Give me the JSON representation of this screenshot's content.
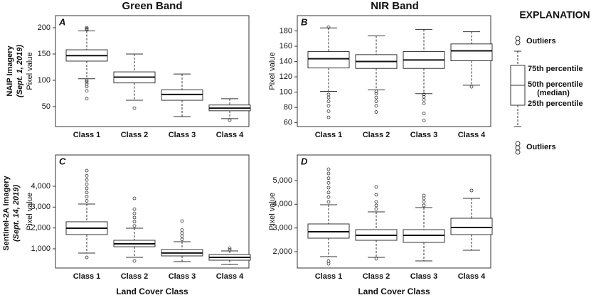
{
  "layout": {
    "column_titles": [
      "Green Band",
      "NIR Band"
    ],
    "row_titles": [
      [
        "NAIP Imagery",
        "(Sept. 1, 2019)"
      ],
      [
        "Sentinel-2A Imagery",
        "(Sept. 14, 2019)"
      ]
    ]
  },
  "explanation": {
    "title": "EXPLANATION",
    "outliers_top": "Outliers",
    "q3": "75th percentile",
    "median": "50th percentile",
    "median_note": "(median)",
    "q1": "25th percentile",
    "outliers_bottom": "Outliers"
  },
  "chart_data": [
    {
      "type": "box",
      "panel": "A",
      "ylabel": "Pixel value",
      "categories": [
        "Class 1",
        "Class 2",
        "Class 3",
        "Class 4"
      ],
      "ylim": [
        12,
        223
      ],
      "yticks": [
        50,
        100,
        150,
        200
      ],
      "box_color": "#ffffff",
      "line_color": "#333333",
      "whisker_low": [
        103,
        62,
        31,
        27
      ],
      "q1": [
        136.5,
        95,
        62,
        42
      ],
      "median": [
        147,
        106,
        73,
        47
      ],
      "q3": [
        158,
        116,
        82,
        53
      ],
      "whisker_high": [
        194,
        150,
        112,
        65
      ],
      "outliers": [
        [
          65,
          80,
          88,
          93,
          97,
          100,
          196,
          198,
          200
        ],
        [
          47
        ],
        [],
        [
          24
        ]
      ]
    },
    {
      "type": "box",
      "panel": "B",
      "ylabel": "Pixel value",
      "categories": [
        "Class 1",
        "Class 2",
        "Class 3",
        "Class 4"
      ],
      "ylim": [
        55,
        200
      ],
      "yticks": [
        60,
        80,
        100,
        120,
        140,
        160,
        180
      ],
      "box_color": "#ffffff",
      "line_color": "#333333",
      "whisker_low": [
        101,
        103,
        98,
        109
      ],
      "q1": [
        131.6,
        131,
        131,
        141
      ],
      "median": [
        143.7,
        140,
        142,
        154
      ],
      "q3": [
        153,
        149,
        153,
        163
      ],
      "whisker_high": [
        184,
        173.5,
        182,
        179
      ],
      "outliers": [
        [
          67,
          75,
          82,
          88,
          93,
          97,
          185
        ],
        [
          74,
          82,
          88,
          93,
          98,
          101
        ],
        [
          63,
          72,
          85,
          90,
          94,
          97
        ],
        [
          107
        ]
      ]
    },
    {
      "type": "box",
      "panel": "C",
      "ylabel": "Pixel value",
      "xlabel": "Land Cover Class",
      "categories": [
        "Class 1",
        "Class 2",
        "Class 3",
        "Class 4"
      ],
      "ylim": [
        80,
        5500
      ],
      "yticks": [
        {
          "value": 1000,
          "label": "1,000"
        },
        {
          "value": 2000,
          "label": "2,000"
        },
        {
          "value": 3000,
          "label": "3,000"
        },
        {
          "value": 4000,
          "label": "4,000"
        }
      ],
      "box_color": "#ffffff",
      "line_color": "#333333",
      "whisker_low": [
        795,
        590,
        385,
        250
      ],
      "q1": [
        1683,
        1100,
        660,
        455
      ],
      "median": [
        1990,
        1240,
        800,
        590
      ],
      "q3": [
        2297,
        1410,
        965,
        730
      ],
      "whisker_high": [
        3150,
        1990,
        1340,
        900
      ],
      "outliers": [
        [
          590,
          3300,
          3500,
          3700,
          3900,
          4100,
          4300,
          4500,
          4750
        ],
        [
          420,
          2100,
          2300,
          2500,
          2700,
          2900,
          3420
        ],
        [
          1450,
          1600,
          1750,
          1900,
          2330
        ],
        [
          950,
          1030
        ]
      ]
    },
    {
      "type": "box",
      "panel": "D",
      "ylabel": "Pixel value",
      "xlabel": "Land Cover Class",
      "categories": [
        "Class 1",
        "Class 2",
        "Class 3",
        "Class 4"
      ],
      "ylim": [
        1310,
        6080
      ],
      "yticks": [
        {
          "value": 2000,
          "label": "2,000"
        },
        {
          "value": 3000,
          "label": "3,000"
        },
        {
          "value": 4000,
          "label": "4,000"
        },
        {
          "value": 5000,
          "label": "5,000"
        }
      ],
      "box_color": "#ffffff",
      "line_color": "#333333",
      "whisker_low": [
        1790,
        1760,
        1610,
        2060
      ],
      "q1": [
        2570,
        2480,
        2390,
        2720
      ],
      "median": [
        2840,
        2690,
        2690,
        3020
      ],
      "q3": [
        3170,
        2930,
        2930,
        3410
      ],
      "whisker_high": [
        3980,
        3680,
        3860,
        4250
      ],
      "outliers": [
        [
          1490,
          1600,
          4100,
          4300,
          4500,
          4700,
          4900,
          5100,
          5300,
          5480
        ],
        [
          1700,
          3800,
          3950,
          4100,
          4400,
          4730
        ],
        [
          3950,
          4100,
          4250,
          4370
        ],
        [
          4580
        ]
      ]
    }
  ]
}
